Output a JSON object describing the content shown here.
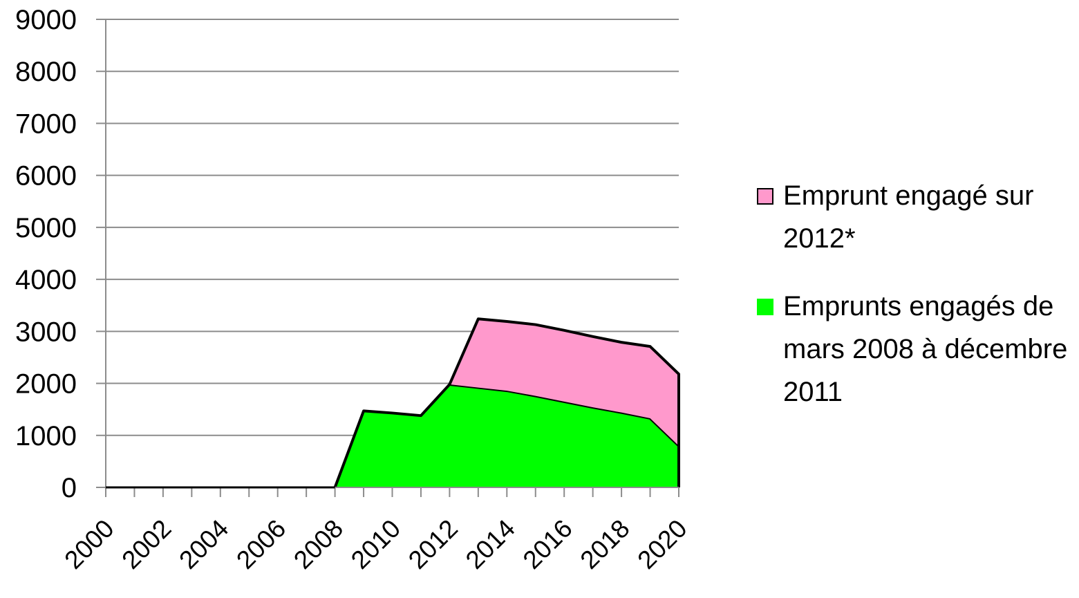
{
  "chart_data": {
    "type": "area",
    "stacked": true,
    "title": "",
    "xlabel": "",
    "ylabel": "",
    "x": [
      2000,
      2001,
      2002,
      2003,
      2004,
      2005,
      2006,
      2007,
      2008,
      2009,
      2010,
      2011,
      2012,
      2013,
      2014,
      2015,
      2016,
      2017,
      2018,
      2019,
      2020
    ],
    "x_tick_labels": [
      "2000",
      "2002",
      "2004",
      "2006",
      "2008",
      "2010",
      "2012",
      "2014",
      "2016",
      "2018",
      "2020"
    ],
    "ylim": [
      0,
      9000
    ],
    "y_ticks": [
      0,
      1000,
      2000,
      3000,
      4000,
      5000,
      6000,
      7000,
      8000,
      9000
    ],
    "grid": true,
    "legend_position": "right",
    "series": [
      {
        "name": "Emprunts engagés de mars 2008 à décembre 2011",
        "color": "#00ff00",
        "values": [
          0,
          0,
          0,
          0,
          0,
          0,
          0,
          0,
          0,
          1470,
          1430,
          1380,
          1980,
          1920,
          1860,
          1760,
          1650,
          1540,
          1440,
          1330,
          800
        ]
      },
      {
        "name": "Emprunt engagé sur 2012*",
        "color": "#ff99cc",
        "values": [
          0,
          0,
          0,
          0,
          0,
          0,
          0,
          0,
          0,
          0,
          0,
          0,
          0,
          1320,
          1330,
          1370,
          1370,
          1360,
          1350,
          1380,
          1380
        ]
      }
    ],
    "legend": {
      "items": [
        {
          "label_line1": "Emprunt engagé sur",
          "label_line2": "2012*",
          "color": "#ff99cc"
        },
        {
          "label_line1": "Emprunts engagés de",
          "label_line2": "mars 2008 à décembre",
          "label_line3": "2011",
          "color": "#00ff00"
        }
      ]
    }
  }
}
